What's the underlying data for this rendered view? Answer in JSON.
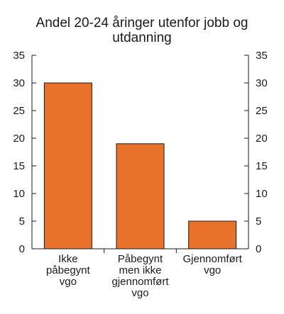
{
  "chart_data": {
    "type": "bar",
    "title_lines": [
      "Andel 20-24 åringer utenfor jobb og",
      "utdanning"
    ],
    "categories": [
      [
        "Ikke",
        "påbegynt",
        "vgo"
      ],
      [
        "Påbegynt",
        "men ikke",
        "gjennomført",
        "vgo"
      ],
      [
        "Gjennomført",
        "vgo"
      ]
    ],
    "values": [
      30,
      19,
      5
    ],
    "ylim": [
      0,
      35
    ],
    "yticks": [
      "0",
      "5",
      "10",
      "15",
      "20",
      "25",
      "30",
      "35"
    ],
    "bar_color": "#e8722a",
    "bar_edge_color": "#1a1a1a",
    "grid": false,
    "y_axis_both_sides": true
  }
}
